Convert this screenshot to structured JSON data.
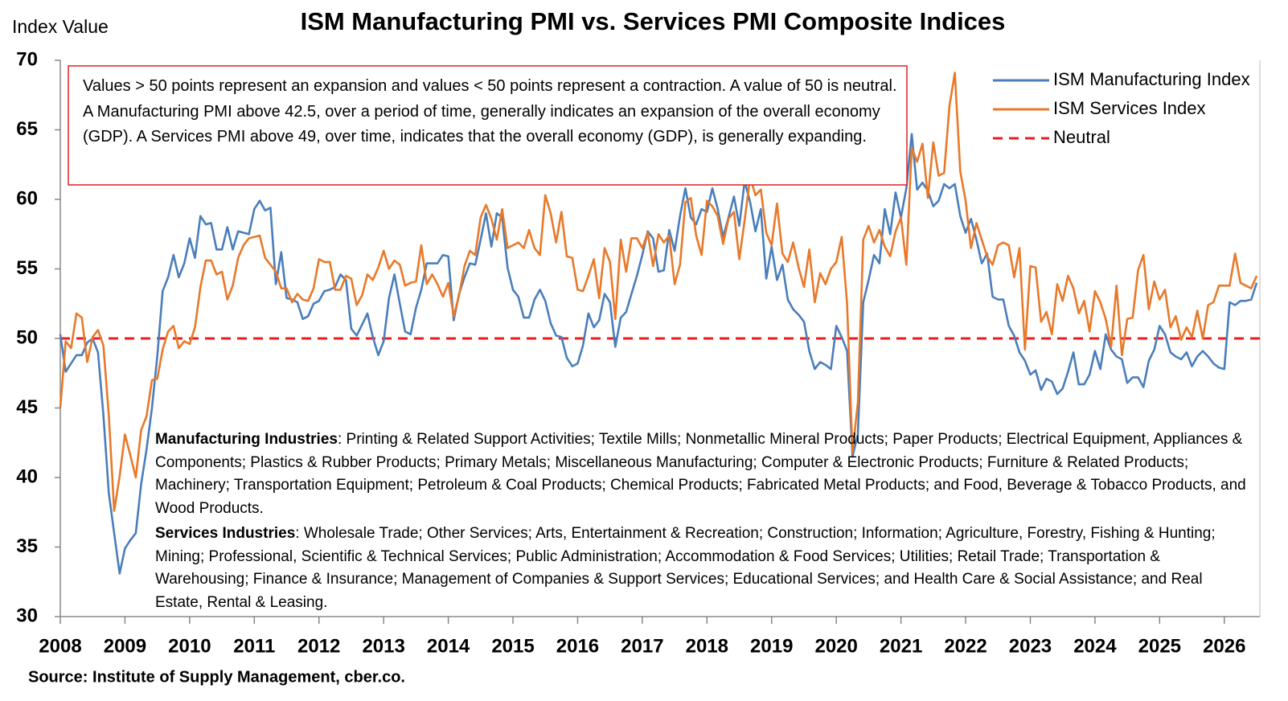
{
  "chart_data": {
    "type": "line",
    "title": "ISM Manufacturing PMI vs. Services PMI Composite Indices",
    "ylabel": "Index Value",
    "annotation": "Values > 50 points represent an expansion and values < 50 points represent a contraction. A value of 50 is neutral. A Manufacturing PMI above 42.5, over a period of time, generally indicates an expansion of the overall economy (GDP). A Services PMI above 49, over time, indicates that the overall economy (GDP), is generally expanding.",
    "notes": [
      {
        "label": "Manufacturing Industries",
        "text": ": Printing & Related Support Activities; Textile Mills; Nonmetallic Mineral Products; Paper Products; Electrical Equipment, Appliances & Components; Plastics & Rubber Products; Primary Metals; Miscellaneous Manufacturing; Computer & Electronic Products; Furniture & Related Products; Machinery; Transportation Equipment; Petroleum & Coal Products; Chemical Products; Fabricated Metal Products; and Food, Beverage & Tobacco Products, and Wood Products."
      },
      {
        "label": "Services Industries",
        "text": ": Wholesale Trade; Other Services; Arts, Entertainment & Recreation; Construction; Information; Agriculture, Forestry, Fishing & Hunting; Mining; Professional, Scientific & Technical Services; Public Administration; Accommodation & Food Services; Utilities; Retail Trade; Transportation & Warehousing; Finance & Insurance; Management of Companies & Support Services; Educational Services; and Health Care & Social Assistance; and Real Estate, Rental & Leasing."
      }
    ],
    "source": "Source: Institute of Supply Management, cber.co.",
    "x": [
      2008,
      2008.083,
      2008.167,
      2008.25,
      2008.333,
      2008.417,
      2008.5,
      2008.583,
      2008.667,
      2008.75,
      2008.833,
      2008.917,
      2009,
      2009.083,
      2009.167,
      2009.25,
      2009.333,
      2009.417,
      2009.5,
      2009.583,
      2009.667,
      2009.75,
      2009.833,
      2009.917,
      2010,
      2010.083,
      2010.167,
      2010.25,
      2010.333,
      2010.417,
      2010.5,
      2010.583,
      2010.667,
      2010.75,
      2010.833,
      2010.917,
      2011,
      2011.083,
      2011.167,
      2011.25,
      2011.333,
      2011.417,
      2011.5,
      2011.583,
      2011.667,
      2011.75,
      2011.833,
      2011.917,
      2012,
      2012.083,
      2012.167,
      2012.25,
      2012.333,
      2012.417,
      2012.5,
      2012.583,
      2012.667,
      2012.75,
      2012.833,
      2012.917,
      2013,
      2013.083,
      2013.167,
      2013.25,
      2013.333,
      2013.417,
      2013.5,
      2013.583,
      2013.667,
      2013.75,
      2013.833,
      2013.917,
      2014,
      2014.083,
      2014.167,
      2014.25,
      2014.333,
      2014.417,
      2014.5,
      2014.583,
      2014.667,
      2014.75,
      2014.833,
      2014.917,
      2015,
      2015.083,
      2015.167,
      2015.25,
      2015.333,
      2015.417,
      2015.5,
      2015.583,
      2015.667,
      2015.75,
      2015.833,
      2015.917,
      2016,
      2016.083,
      2016.167,
      2016.25,
      2016.333,
      2016.417,
      2016.5,
      2016.583,
      2016.667,
      2016.75,
      2016.833,
      2016.917,
      2017,
      2017.083,
      2017.167,
      2017.25,
      2017.333,
      2017.417,
      2017.5,
      2017.583,
      2017.667,
      2017.75,
      2017.833,
      2017.917,
      2018,
      2018.083,
      2018.167,
      2018.25,
      2018.333,
      2018.417,
      2018.5,
      2018.583,
      2018.667,
      2018.75,
      2018.833,
      2018.917,
      2019,
      2019.083,
      2019.167,
      2019.25,
      2019.333,
      2019.417,
      2019.5,
      2019.583,
      2019.667,
      2019.75,
      2019.833,
      2019.917,
      2020,
      2020.083,
      2020.167,
      2020.25,
      2020.333,
      2020.417,
      2020.5,
      2020.583,
      2020.667,
      2020.75,
      2020.833,
      2020.917,
      2021,
      2021.083,
      2021.167,
      2021.25,
      2021.333,
      2021.417,
      2021.5,
      2021.583,
      2021.667,
      2021.75,
      2021.833,
      2021.917,
      2022,
      2022.083,
      2022.167,
      2022.25,
      2022.333,
      2022.417,
      2022.5,
      2022.583,
      2022.667,
      2022.75,
      2022.833,
      2022.917,
      2023,
      2023.083,
      2023.167,
      2023.25,
      2023.333,
      2023.417,
      2023.5,
      2023.583,
      2023.667,
      2023.75,
      2023.833,
      2023.917,
      2024,
      2024.083,
      2024.167,
      2024.25,
      2024.333,
      2024.417,
      2024.5,
      2024.583,
      2024.667,
      2024.75,
      2024.833,
      2024.917,
      2025,
      2025.083,
      2025.167,
      2025.25,
      2025.333,
      2025.417,
      2025.5,
      2025.583,
      2025.667,
      2025.75,
      2025.833,
      2025.917,
      2026,
      2026.083,
      2026.167,
      2026.25,
      2026.333,
      2026.417,
      2026.5
    ],
    "series": [
      {
        "name": "ISM Manufacturing Index",
        "color": "#4a7ebb",
        "values": [
          50.3,
          47.6,
          48.2,
          48.8,
          48.8,
          49.7,
          50.0,
          49.0,
          44.5,
          38.9,
          36.0,
          33.1,
          34.9,
          35.5,
          36.0,
          39.5,
          42.0,
          45.0,
          48.7,
          53.4,
          54.4,
          56.0,
          54.4,
          55.4,
          57.2,
          55.8,
          58.8,
          58.2,
          58.3,
          56.4,
          56.4,
          58.0,
          56.4,
          57.7,
          57.6,
          57.5,
          59.3,
          59.9,
          59.2,
          59.4,
          53.9,
          56.2,
          52.9,
          52.8,
          52.6,
          51.4,
          51.6,
          52.5,
          52.7,
          53.4,
          53.5,
          53.7,
          54.6,
          54.2,
          50.7,
          50.2,
          51.0,
          51.8,
          50.1,
          48.8,
          49.8,
          52.9,
          54.6,
          52.5,
          50.5,
          50.3,
          52.2,
          53.5,
          55.4,
          55.4,
          55.4,
          56.0,
          55.9,
          51.3,
          53.2,
          54.4,
          55.4,
          55.3,
          57.1,
          59.0,
          56.6,
          59.0,
          58.7,
          55.1,
          53.5,
          53.0,
          51.5,
          51.5,
          52.8,
          53.5,
          52.7,
          51.1,
          50.2,
          50.1,
          48.6,
          48.0,
          48.2,
          49.5,
          51.8,
          50.8,
          51.3,
          53.2,
          52.6,
          49.4,
          51.5,
          51.9,
          53.2,
          54.5,
          56.0,
          57.7,
          57.2,
          54.8,
          54.9,
          57.8,
          56.3,
          58.8,
          60.8,
          58.7,
          58.2,
          59.3,
          59.1,
          60.8,
          59.3,
          57.3,
          58.7,
          60.2,
          58.1,
          61.3,
          59.8,
          57.7,
          59.3,
          54.3,
          56.6,
          54.2,
          55.3,
          52.8,
          52.1,
          51.7,
          51.2,
          49.1,
          47.8,
          48.3,
          48.1,
          47.8,
          50.9,
          50.1,
          49.1,
          41.5,
          43.1,
          52.6,
          54.2,
          56.0,
          55.4,
          59.3,
          57.5,
          60.5,
          58.7,
          60.8,
          64.7,
          60.7,
          61.2,
          60.6,
          59.5,
          59.9,
          61.1,
          60.8,
          61.1,
          58.8,
          57.6,
          58.6,
          57.1,
          55.4,
          56.1,
          53.0,
          52.8,
          52.8,
          50.9,
          50.2,
          49.0,
          48.4,
          47.4,
          47.7,
          46.3,
          47.1,
          46.9,
          46.0,
          46.4,
          47.6,
          49.0,
          46.7,
          46.7,
          47.4,
          49.1,
          47.8,
          50.3,
          49.2,
          48.7,
          48.5,
          46.8,
          47.2,
          47.2,
          46.5,
          48.4,
          49.2,
          50.9,
          50.3,
          49.0,
          48.7,
          48.5,
          49.0,
          48.0,
          48.7,
          49.1,
          48.7,
          48.2,
          47.9,
          47.8,
          52.6,
          52.4,
          52.7,
          52.7,
          52.8,
          54.0
        ]
      },
      {
        "name": "ISM Services Index",
        "color": "#e8792a",
        "values": [
          45.0,
          49.8,
          49.3,
          51.8,
          51.5,
          48.3,
          50.1,
          50.6,
          49.5,
          44.5,
          37.6,
          40.1,
          43.1,
          41.6,
          40.0,
          43.4,
          44.4,
          47.0,
          47.1,
          49.2,
          50.5,
          50.9,
          49.3,
          49.8,
          49.6,
          50.8,
          53.7,
          55.6,
          55.6,
          54.6,
          54.8,
          52.8,
          53.8,
          55.8,
          56.7,
          57.2,
          57.3,
          57.4,
          55.8,
          55.3,
          54.8,
          53.6,
          53.6,
          52.6,
          53.2,
          52.8,
          52.7,
          53.6,
          55.7,
          55.5,
          55.5,
          53.5,
          53.5,
          54.5,
          54.3,
          52.4,
          53.1,
          54.6,
          54.2,
          55.1,
          56.3,
          55.0,
          55.6,
          55.3,
          53.8,
          54.0,
          54.1,
          56.7,
          53.9,
          54.6,
          53.9,
          53.0,
          54.0,
          51.6,
          53.1,
          55.2,
          56.3,
          56.0,
          58.7,
          59.6,
          58.6,
          57.1,
          59.3,
          56.5,
          56.7,
          56.9,
          56.5,
          57.8,
          56.5,
          56.0,
          60.3,
          59.0,
          56.9,
          59.1,
          55.9,
          55.8,
          53.5,
          53.4,
          54.5,
          55.7,
          52.9,
          56.5,
          55.5,
          51.4,
          57.1,
          54.8,
          57.2,
          57.2,
          56.5,
          57.6,
          55.2,
          57.5,
          56.9,
          57.4,
          53.9,
          55.3,
          59.8,
          60.1,
          57.4,
          56.0,
          59.9,
          59.5,
          58.8,
          56.8,
          58.6,
          59.1,
          55.7,
          58.5,
          61.6,
          60.3,
          60.7,
          57.6,
          56.7,
          59.7,
          56.1,
          55.5,
          56.9,
          55.1,
          53.7,
          56.4,
          52.6,
          54.7,
          53.9,
          55.0,
          55.5,
          57.3,
          52.5,
          41.8,
          45.4,
          57.1,
          58.1,
          56.9,
          57.8,
          56.6,
          55.9,
          57.7,
          58.7,
          55.3,
          63.7,
          62.7,
          64.0,
          60.1,
          64.1,
          61.7,
          61.9,
          66.7,
          69.1,
          62.0,
          59.9,
          56.5,
          58.3,
          57.1,
          55.9,
          55.3,
          56.7,
          56.9,
          56.7,
          54.4,
          56.5,
          49.2,
          55.2,
          55.1,
          51.2,
          51.9,
          50.3,
          53.9,
          52.7,
          54.5,
          53.6,
          51.8,
          52.7,
          50.5,
          53.4,
          52.6,
          51.4,
          49.4,
          53.8,
          48.8,
          51.4,
          51.5,
          54.9,
          56.0,
          52.1,
          54.1,
          52.8,
          53.5,
          50.8,
          51.6,
          49.9,
          50.8,
          50.1,
          52.0,
          50.0,
          52.4,
          52.6,
          53.8,
          53.8,
          53.8,
          56.1,
          54.0,
          53.8,
          53.6,
          54.5
        ]
      }
    ],
    "neutral": {
      "name": "Neutral",
      "value": 50,
      "color": "#ee1c1c"
    },
    "xlim": [
      2008,
      2026.55
    ],
    "xticks": [
      2008,
      2009,
      2010,
      2011,
      2012,
      2013,
      2014,
      2015,
      2016,
      2017,
      2018,
      2019,
      2020,
      2021,
      2022,
      2023,
      2024,
      2025,
      2026
    ],
    "ylim": [
      30,
      70
    ],
    "yticks": [
      30,
      35,
      40,
      45,
      50,
      55,
      60,
      65,
      70
    ],
    "legend": "upper right"
  }
}
